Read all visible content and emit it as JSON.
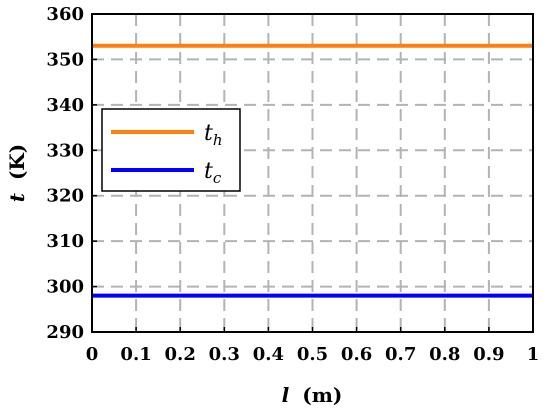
{
  "chart_data": {
    "type": "line",
    "xlabel_var": "l",
    "xlabel_unit": "(m)",
    "ylabel_var": "t",
    "ylabel_unit": "(K)",
    "xlim": [
      0,
      1
    ],
    "ylim": [
      290,
      360
    ],
    "xticks": [
      0,
      0.1,
      0.2,
      0.3,
      0.4,
      0.5,
      0.6,
      0.7,
      0.8,
      0.9,
      1
    ],
    "xtick_labels": [
      "0",
      "0.1",
      "0.2",
      "0.3",
      "0.4",
      "0.5",
      "0.6",
      "0.7",
      "0.8",
      "0.9",
      "1"
    ],
    "yticks": [
      290,
      300,
      310,
      320,
      330,
      340,
      350,
      360
    ],
    "ytick_labels": [
      "290",
      "300",
      "310",
      "320",
      "330",
      "340",
      "350",
      "360"
    ],
    "grid": true,
    "grid_style": "dashed",
    "legend_position": "middle-left",
    "series": [
      {
        "name_base": "t",
        "name_sub": "h",
        "color": "#FF7F0E",
        "x": [
          0,
          1
        ],
        "y": [
          353,
          353
        ]
      },
      {
        "name_base": "t",
        "name_sub": "c",
        "color": "#0000FF",
        "x": [
          0,
          1
        ],
        "y": [
          298,
          298
        ]
      }
    ]
  }
}
